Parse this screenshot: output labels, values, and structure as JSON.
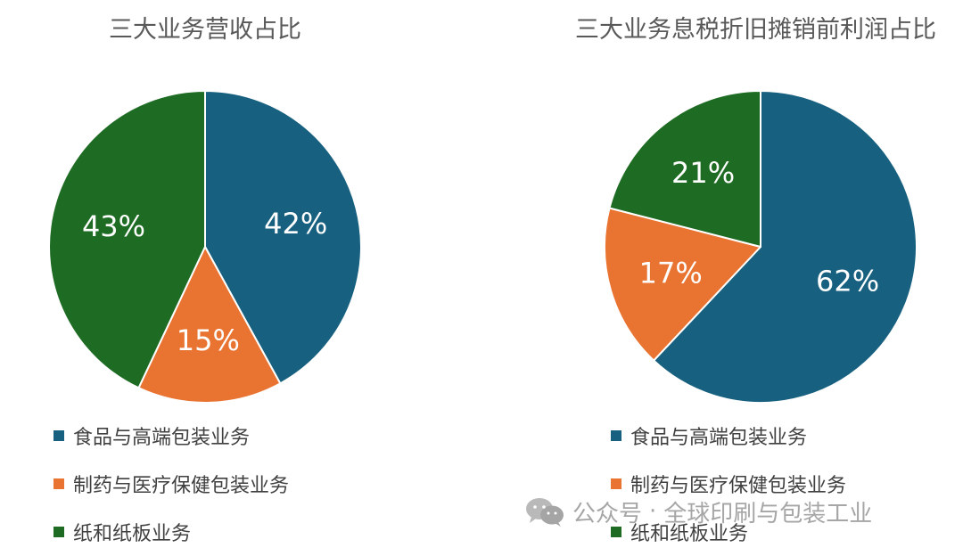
{
  "colors": {
    "food": "#17607F",
    "pharma": "#E97432",
    "paper": "#1E6B23",
    "title": "#595959",
    "legend_text": "#404040",
    "label_text": "#FFFFFF"
  },
  "legend": [
    {
      "label": "食品与高端包装业务",
      "color": "#17607F"
    },
    {
      "label": "制药与医疗保健包装业务",
      "color": "#E97432"
    },
    {
      "label": "纸和纸板业务",
      "color": "#1E6B23"
    }
  ],
  "chart_data": [
    {
      "type": "pie",
      "title": "三大业务营收占比",
      "categories": [
        "食品与高端包装业务",
        "制药与医疗保健包装业务",
        "纸和纸板业务"
      ],
      "values": [
        42,
        15,
        43
      ],
      "labels": [
        "42%",
        "15%",
        "43%"
      ],
      "colors": [
        "#17607F",
        "#E97432",
        "#1E6B23"
      ],
      "start_angle": "12 o'clock",
      "direction": "clockwise",
      "legend_position": "bottom"
    },
    {
      "type": "pie",
      "title": "三大业务息税折旧摊销前利润占比",
      "categories": [
        "食品与高端包装业务",
        "制药与医疗保健包装业务",
        "纸和纸板业务"
      ],
      "values": [
        62,
        17,
        21
      ],
      "labels": [
        "62%",
        "17%",
        "21%"
      ],
      "colors": [
        "#17607F",
        "#E97432",
        "#1E6B23"
      ],
      "start_angle": "12 o'clock",
      "direction": "clockwise",
      "legend_position": "bottom"
    }
  ],
  "watermark": {
    "icon": "wechat-icon",
    "source": "公众号",
    "separator": "·",
    "name": "全球印刷与包装工业"
  }
}
